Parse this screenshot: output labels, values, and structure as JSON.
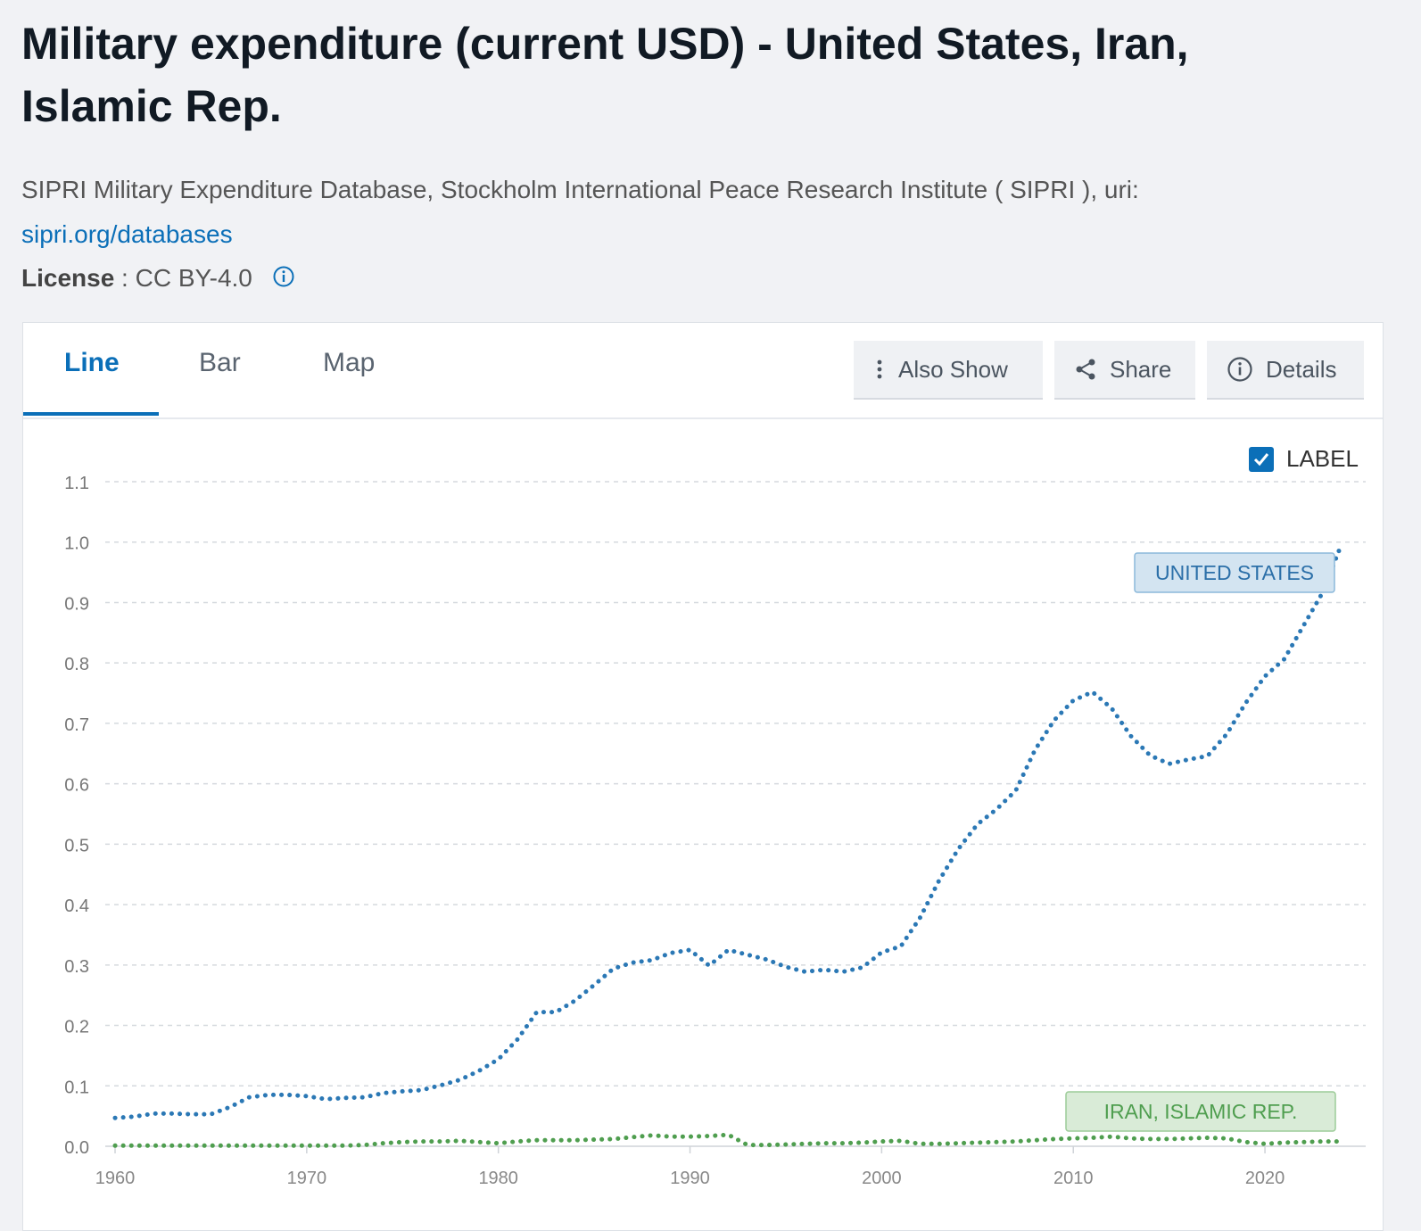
{
  "page": {
    "title": "Military expenditure (current USD) - United States, Iran, Islamic Rep.",
    "source_text": "SIPRI Military Expenditure Database, Stockholm International Peace Research Institute ( SIPRI ), uri:",
    "source_link": "sipri.org/databases",
    "license_label": "License",
    "license_sep": " : ",
    "license_value": "CC BY-4.0"
  },
  "tabs": [
    {
      "label": "Line",
      "active": true
    },
    {
      "label": "Bar",
      "active": false
    },
    {
      "label": "Map",
      "active": false
    }
  ],
  "toolbar": {
    "also_show": "Also Show",
    "share": "Share",
    "details": "Details",
    "label_toggle": "LABEL",
    "label_checked": true
  },
  "colors": {
    "accent": "#0b6fb8",
    "us_line": "#2b78b5",
    "iran_line": "#4f9e4f"
  },
  "chart_data": {
    "type": "line",
    "title": "",
    "xlabel": "",
    "ylabel": "",
    "xlim": [
      1960,
      2024
    ],
    "ylim": [
      0,
      1.1
    ],
    "x_ticks": [
      "1960",
      "1970",
      "1980",
      "1990",
      "2000",
      "2010",
      "2020"
    ],
    "y_ticks": [
      "0.0",
      "0.1",
      "0.2",
      "0.3",
      "0.4",
      "0.5",
      "0.6",
      "0.7",
      "0.8",
      "0.9",
      "1.0",
      "1.1"
    ],
    "grid": true,
    "series": [
      {
        "name": "UNITED STATES",
        "color": "#2b78b5",
        "x": [
          1960,
          1961,
          1962,
          1963,
          1964,
          1965,
          1966,
          1967,
          1968,
          1969,
          1970,
          1971,
          1972,
          1973,
          1974,
          1975,
          1976,
          1977,
          1978,
          1979,
          1980,
          1981,
          1982,
          1983,
          1984,
          1985,
          1986,
          1987,
          1988,
          1989,
          1990,
          1991,
          1992,
          1993,
          1994,
          1995,
          1996,
          1997,
          1998,
          1999,
          2000,
          2001,
          2002,
          2003,
          2004,
          2005,
          2006,
          2007,
          2008,
          2009,
          2010,
          2011,
          2012,
          2013,
          2014,
          2015,
          2016,
          2017,
          2018,
          2019,
          2020,
          2021,
          2022,
          2023,
          2024
        ],
        "values": [
          0.047,
          0.049,
          0.054,
          0.054,
          0.053,
          0.053,
          0.065,
          0.081,
          0.085,
          0.085,
          0.083,
          0.078,
          0.08,
          0.081,
          0.088,
          0.091,
          0.093,
          0.101,
          0.11,
          0.125,
          0.144,
          0.177,
          0.222,
          0.222,
          0.241,
          0.267,
          0.294,
          0.304,
          0.308,
          0.32,
          0.325,
          0.299,
          0.325,
          0.317,
          0.309,
          0.297,
          0.289,
          0.292,
          0.289,
          0.296,
          0.321,
          0.331,
          0.378,
          0.44,
          0.492,
          0.533,
          0.558,
          0.589,
          0.656,
          0.705,
          0.738,
          0.752,
          0.725,
          0.679,
          0.647,
          0.633,
          0.64,
          0.646,
          0.682,
          0.734,
          0.778,
          0.806,
          0.861,
          0.916,
          0.997
        ]
      },
      {
        "name": "IRAN, ISLAMIC REP.",
        "color": "#4f9e4f",
        "x": [
          1960,
          1961,
          1962,
          1963,
          1964,
          1965,
          1966,
          1967,
          1968,
          1969,
          1970,
          1971,
          1972,
          1973,
          1974,
          1975,
          1976,
          1977,
          1978,
          1979,
          1980,
          1981,
          1982,
          1983,
          1984,
          1985,
          1986,
          1987,
          1988,
          1989,
          1990,
          1991,
          1992,
          1993,
          1994,
          1995,
          1996,
          1997,
          1998,
          1999,
          2000,
          2001,
          2002,
          2003,
          2004,
          2005,
          2006,
          2007,
          2008,
          2009,
          2010,
          2011,
          2012,
          2013,
          2014,
          2015,
          2016,
          2017,
          2018,
          2019,
          2020,
          2021,
          2022,
          2023,
          2024
        ],
        "values": [
          0.001,
          0.001,
          0.001,
          0.001,
          0.001,
          0.001,
          0.001,
          0.001,
          0.001,
          0.001,
          0.001,
          0.001,
          0.001,
          0.002,
          0.005,
          0.007,
          0.008,
          0.008,
          0.009,
          0.007,
          0.005,
          0.008,
          0.01,
          0.01,
          0.01,
          0.011,
          0.012,
          0.015,
          0.018,
          0.016,
          0.016,
          0.017,
          0.019,
          0.002,
          0.002,
          0.003,
          0.004,
          0.005,
          0.005,
          0.006,
          0.008,
          0.009,
          0.004,
          0.004,
          0.005,
          0.006,
          0.007,
          0.008,
          0.01,
          0.012,
          0.013,
          0.014,
          0.016,
          0.013,
          0.012,
          0.012,
          0.013,
          0.014,
          0.013,
          0.007,
          0.004,
          0.006,
          0.007,
          0.008,
          0.008
        ]
      }
    ],
    "labels_shown": true
  }
}
